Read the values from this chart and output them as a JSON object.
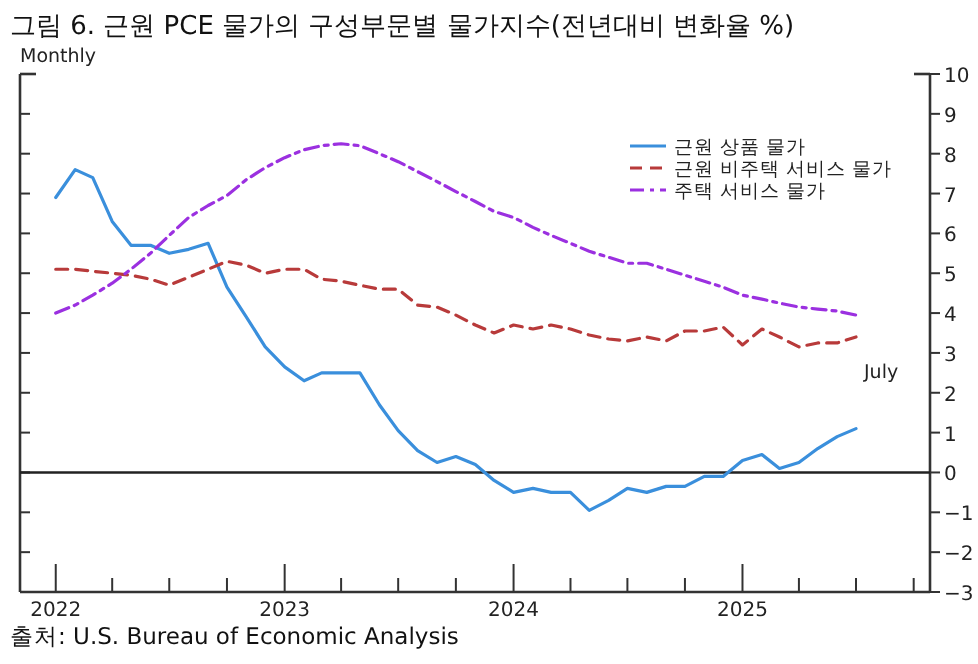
{
  "chart_data": {
    "type": "line",
    "title": "그림 6. 근원 PCE 물가의 구성부문별 물가지수(전년대비 변화율 %)",
    "annotations": [
      "Monthly",
      "July",
      "출처: U.S. Bureau of Economic Analysis"
    ],
    "x": [
      "2022-01",
      "2022-02",
      "2022-03",
      "2022-04",
      "2022-05",
      "2022-06",
      "2022-07",
      "2022-08",
      "2022-09",
      "2022-10",
      "2022-11",
      "2022-12",
      "2023-01",
      "2023-02",
      "2023-03",
      "2023-04",
      "2023-05",
      "2023-06",
      "2023-07",
      "2023-08",
      "2023-09",
      "2023-10",
      "2023-11",
      "2023-12",
      "2024-01",
      "2024-02",
      "2024-03",
      "2024-04",
      "2024-05",
      "2024-06",
      "2024-07",
      "2024-08",
      "2024-09",
      "2024-10",
      "2024-11",
      "2024-12",
      "2025-01",
      "2025-02",
      "2025-03",
      "2025-04",
      "2025-05",
      "2025-06",
      "2025-07"
    ],
    "series": [
      {
        "name": "근원 상품 물가",
        "color": "#3a8fdc",
        "line_style": "solid",
        "values": [
          6.9,
          7.6,
          7.4,
          6.3,
          5.7,
          5.7,
          5.5,
          5.6,
          5.75,
          4.65,
          3.9,
          3.15,
          2.65,
          2.3,
          2.5,
          2.5,
          2.5,
          1.7,
          1.05,
          0.55,
          0.25,
          0.4,
          0.2,
          -0.2,
          -0.5,
          -0.4,
          -0.5,
          -0.5,
          -0.95,
          -0.7,
          -0.4,
          -0.5,
          -0.35,
          -0.35,
          -0.1,
          -0.1,
          0.3,
          0.45,
          0.1,
          0.25,
          0.6,
          0.9,
          1.1
        ]
      },
      {
        "name": "근원 비주택 서비스 물가",
        "color": "#b83a3a",
        "line_style": "dashed",
        "values": [
          5.1,
          5.1,
          5.05,
          5.0,
          4.95,
          4.85,
          4.7,
          4.9,
          5.1,
          5.3,
          5.2,
          5.0,
          5.1,
          5.1,
          4.85,
          4.8,
          4.7,
          4.6,
          4.6,
          4.2,
          4.15,
          3.95,
          3.7,
          3.5,
          3.7,
          3.6,
          3.7,
          3.6,
          3.45,
          3.35,
          3.3,
          3.4,
          3.3,
          3.55,
          3.55,
          3.65,
          3.2,
          3.6,
          3.4,
          3.15,
          3.25,
          3.25,
          3.4
        ]
      },
      {
        "name": "주택 서비스 물가",
        "color": "#9b30e0",
        "line_style": "dashdot",
        "values": [
          4.0,
          4.2,
          4.45,
          4.75,
          5.1,
          5.5,
          5.95,
          6.4,
          6.7,
          6.95,
          7.35,
          7.65,
          7.9,
          8.1,
          8.2,
          8.25,
          8.2,
          8.0,
          7.8,
          7.55,
          7.3,
          7.05,
          6.8,
          6.55,
          6.4,
          6.15,
          5.95,
          5.75,
          5.55,
          5.4,
          5.25,
          5.25,
          5.1,
          4.95,
          4.8,
          4.65,
          4.45,
          4.35,
          4.25,
          4.15,
          4.1,
          4.05,
          3.95
        ]
      }
    ],
    "xlim": [
      "2021-11-05",
      "2025-10-27"
    ],
    "xticks": [
      {
        "value": "2022-01-01",
        "label": "2022"
      },
      {
        "value": "2022-04-01",
        "label": null
      },
      {
        "value": "2022-07-01",
        "label": null
      },
      {
        "value": "2022-10-01",
        "label": null
      },
      {
        "value": "2023-01-01",
        "label": "2023"
      },
      {
        "value": "2023-04-01",
        "label": null
      },
      {
        "value": "2023-07-01",
        "label": null
      },
      {
        "value": "2023-10-01",
        "label": null
      },
      {
        "value": "2024-01-01",
        "label": "2024"
      },
      {
        "value": "2024-04-01",
        "label": null
      },
      {
        "value": "2024-07-01",
        "label": null
      },
      {
        "value": "2024-10-01",
        "label": null
      },
      {
        "value": "2025-01-01",
        "label": "2025"
      },
      {
        "value": "2025-04-01",
        "label": null
      },
      {
        "value": "2025-07-01",
        "label": null
      },
      {
        "value": "2025-10-01",
        "label": null
      }
    ],
    "ylim": [
      -3,
      10
    ],
    "yticks": [
      -3,
      -2,
      -1,
      0,
      1,
      2,
      3,
      4,
      5,
      6,
      7,
      8,
      9,
      10
    ],
    "ref_lines": [
      {
        "axis": "y",
        "value": 0,
        "color": "#222222"
      }
    ],
    "legend": "top right",
    "grid": false
  }
}
